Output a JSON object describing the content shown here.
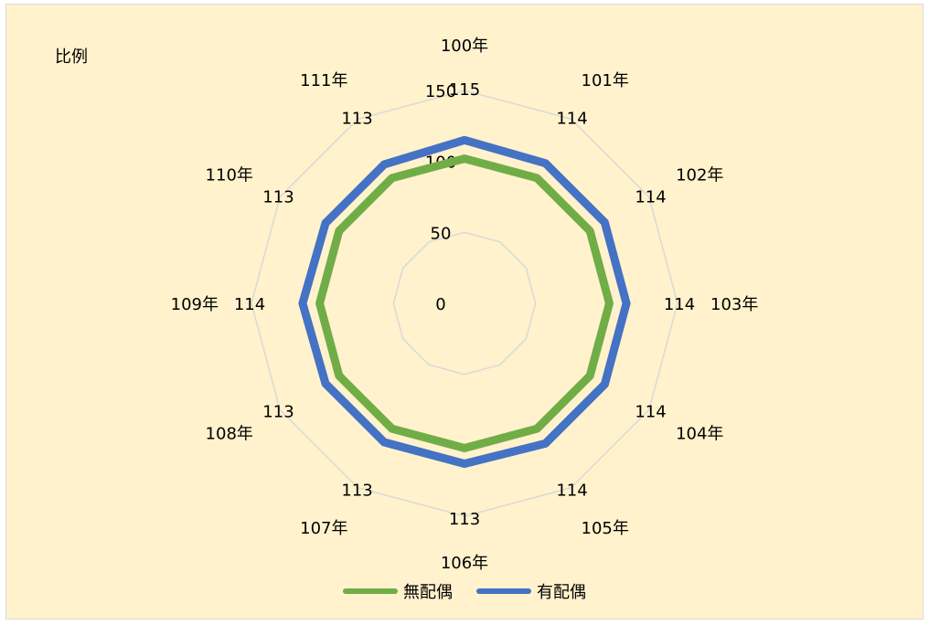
{
  "chart_data": {
    "type": "radar",
    "title": "",
    "ylabel": "比例",
    "categories": [
      "100年",
      "101年",
      "102年",
      "103年",
      "104年",
      "105年",
      "106年",
      "107年",
      "108年",
      "109年",
      "110年",
      "111年"
    ],
    "radial_ticks": [
      "0",
      "50",
      "100",
      "150"
    ],
    "rmax": 150,
    "series": [
      {
        "name": "無配偶",
        "color": "#70ad47",
        "values": [
          102,
          102,
          102,
          102,
          102,
          102,
          102,
          102,
          102,
          102,
          102,
          102
        ]
      },
      {
        "name": "有配偶",
        "color": "#4472c4",
        "values": [
          115,
          114,
          114,
          114,
          114,
          114,
          113,
          113,
          113,
          114,
          113,
          113
        ]
      }
    ],
    "legend_position": "bottom",
    "grid": true
  }
}
